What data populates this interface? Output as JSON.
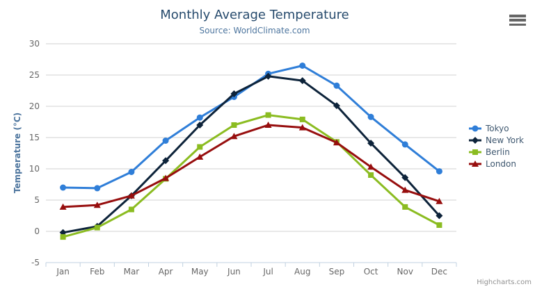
{
  "header": {
    "title": "Monthly Average Temperature",
    "subtitle": "Source: WorldClimate.com"
  },
  "export_menu": {
    "icon": "hamburger-menu-icon"
  },
  "credits": "Highcharts.com",
  "colors": {
    "title": "#274b6d",
    "subtitle": "#4d759e",
    "axis_label": "#666666",
    "axis_title": "#4d759e",
    "grid": "#d2d2d2",
    "axis_line": "#c0d0e0",
    "legend_text": "#3e576f",
    "credits": "#909090"
  },
  "chart_data": {
    "type": "line",
    "title": "Monthly Average Temperature",
    "subtitle": "Source: WorldClimate.com",
    "xlabel": "",
    "ylabel": "Temperature (°C)",
    "ylim": [
      -5,
      30
    ],
    "y_ticks": [
      30,
      25,
      20,
      15,
      10,
      5,
      0,
      -5
    ],
    "grid": true,
    "legend_position": "right",
    "categories": [
      "Jan",
      "Feb",
      "Mar",
      "Apr",
      "May",
      "Jun",
      "Jul",
      "Aug",
      "Sep",
      "Oct",
      "Nov",
      "Dec"
    ],
    "series": [
      {
        "name": "Tokyo",
        "color": "#2f7ed8",
        "marker": "circle",
        "values": [
          7.0,
          6.9,
          9.5,
          14.5,
          18.2,
          21.5,
          25.2,
          26.5,
          23.3,
          18.3,
          13.9,
          9.6
        ]
      },
      {
        "name": "New York",
        "color": "#0d233a",
        "marker": "diamond",
        "values": [
          -0.2,
          0.8,
          5.7,
          11.3,
          17.0,
          22.0,
          24.8,
          24.1,
          20.1,
          14.1,
          8.6,
          2.5
        ]
      },
      {
        "name": "Berlin",
        "color": "#8bbc21",
        "marker": "square",
        "values": [
          -0.9,
          0.6,
          3.5,
          8.4,
          13.5,
          17.0,
          18.6,
          17.9,
          14.3,
          9.0,
          3.9,
          1.0
        ]
      },
      {
        "name": "London",
        "color": "#970e0e",
        "marker": "triangle",
        "values": [
          3.9,
          4.2,
          5.7,
          8.5,
          11.9,
          15.2,
          17.0,
          16.6,
          14.2,
          10.3,
          6.6,
          4.8
        ]
      }
    ]
  }
}
